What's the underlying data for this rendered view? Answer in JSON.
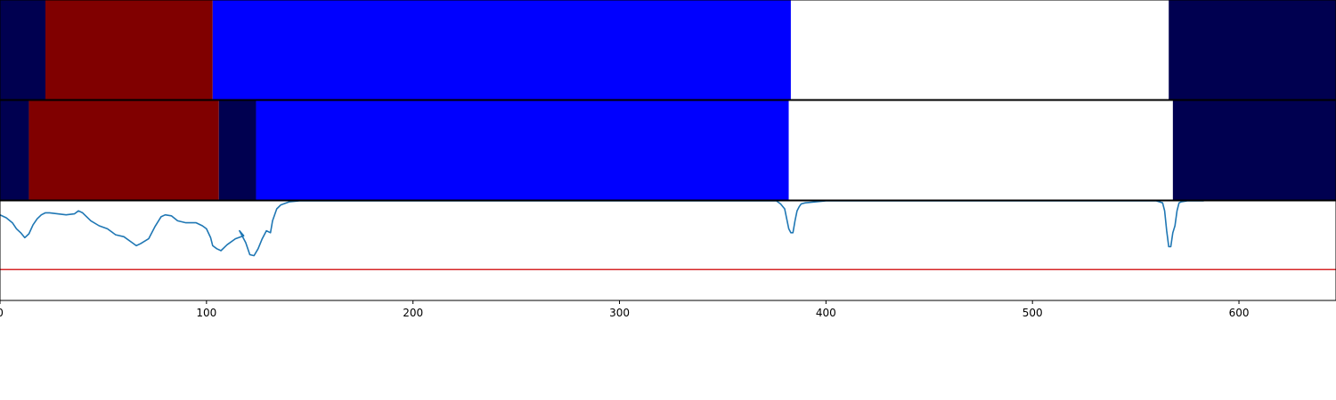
{
  "chart_data": [
    {
      "type": "segment_bar",
      "name": "track-1",
      "xlim": [
        0,
        647
      ],
      "segments": [
        {
          "start": 0,
          "end": 22,
          "color": "#000050"
        },
        {
          "start": 22,
          "end": 103,
          "color": "#800000"
        },
        {
          "start": 103,
          "end": 383,
          "color": "#0000ff"
        },
        {
          "start": 383,
          "end": 566,
          "color": "#ffffff"
        },
        {
          "start": 566,
          "end": 647,
          "color": "#000050"
        }
      ]
    },
    {
      "type": "segment_bar",
      "name": "track-2",
      "xlim": [
        0,
        647
      ],
      "segments": [
        {
          "start": 0,
          "end": 14,
          "color": "#000050"
        },
        {
          "start": 14,
          "end": 106,
          "color": "#800000"
        },
        {
          "start": 106,
          "end": 124,
          "color": "#000050"
        },
        {
          "start": 124,
          "end": 382,
          "color": "#0000ff"
        },
        {
          "start": 382,
          "end": 568,
          "color": "#ffffff"
        },
        {
          "start": 568,
          "end": 647,
          "color": "#000050"
        }
      ]
    },
    {
      "type": "line",
      "xlim": [
        0,
        647
      ],
      "ylim": [
        0,
        1
      ],
      "xticks": [
        0,
        100,
        200,
        300,
        400,
        500,
        600
      ],
      "threshold": {
        "value": 0.31,
        "color": "#d62728"
      },
      "series": [
        {
          "color": "#1f77b4",
          "x": [
            0,
            3,
            6,
            8,
            10,
            12,
            14,
            16,
            18,
            20,
            22,
            24,
            28,
            32,
            36,
            38,
            40,
            44,
            48,
            52,
            56,
            60,
            64,
            66,
            68,
            72,
            75,
            78,
            80,
            83,
            86,
            90,
            95,
            98,
            100,
            102,
            103,
            105,
            107,
            110,
            114,
            118,
            116,
            119,
            121,
            123,
            125,
            127,
            129,
            131,
            132,
            134,
            136,
            140,
            145,
            150,
            155,
            160,
            200,
            250,
            300,
            350,
            370,
            376,
            378,
            380,
            381,
            382,
            383,
            384,
            385,
            386,
            387,
            388,
            390,
            395,
            400,
            420,
            450,
            500,
            540,
            560,
            563,
            564,
            565,
            566,
            567,
            568,
            569,
            570,
            571,
            572,
            575,
            580,
            583
          ],
          "y": [
            0.86,
            0.83,
            0.78,
            0.72,
            0.68,
            0.63,
            0.67,
            0.76,
            0.82,
            0.86,
            0.88,
            0.88,
            0.87,
            0.86,
            0.87,
            0.9,
            0.88,
            0.8,
            0.75,
            0.72,
            0.66,
            0.64,
            0.58,
            0.55,
            0.57,
            0.62,
            0.74,
            0.84,
            0.86,
            0.85,
            0.8,
            0.78,
            0.78,
            0.75,
            0.72,
            0.63,
            0.55,
            0.52,
            0.5,
            0.56,
            0.62,
            0.65,
            0.7,
            0.58,
            0.46,
            0.45,
            0.52,
            0.62,
            0.7,
            0.68,
            0.8,
            0.92,
            0.96,
            0.99,
            1.0,
            1.0,
            1.0,
            1.0,
            1.0,
            1.0,
            1.0,
            1.0,
            1.0,
            1.0,
            0.97,
            0.92,
            0.82,
            0.72,
            0.68,
            0.68,
            0.8,
            0.9,
            0.94,
            0.97,
            0.98,
            0.99,
            1.0,
            1.0,
            1.0,
            1.0,
            1.0,
            1.0,
            0.98,
            0.9,
            0.7,
            0.54,
            0.54,
            0.68,
            0.75,
            0.9,
            0.98,
            0.99,
            1.0,
            1.0,
            1.0
          ]
        }
      ]
    }
  ]
}
